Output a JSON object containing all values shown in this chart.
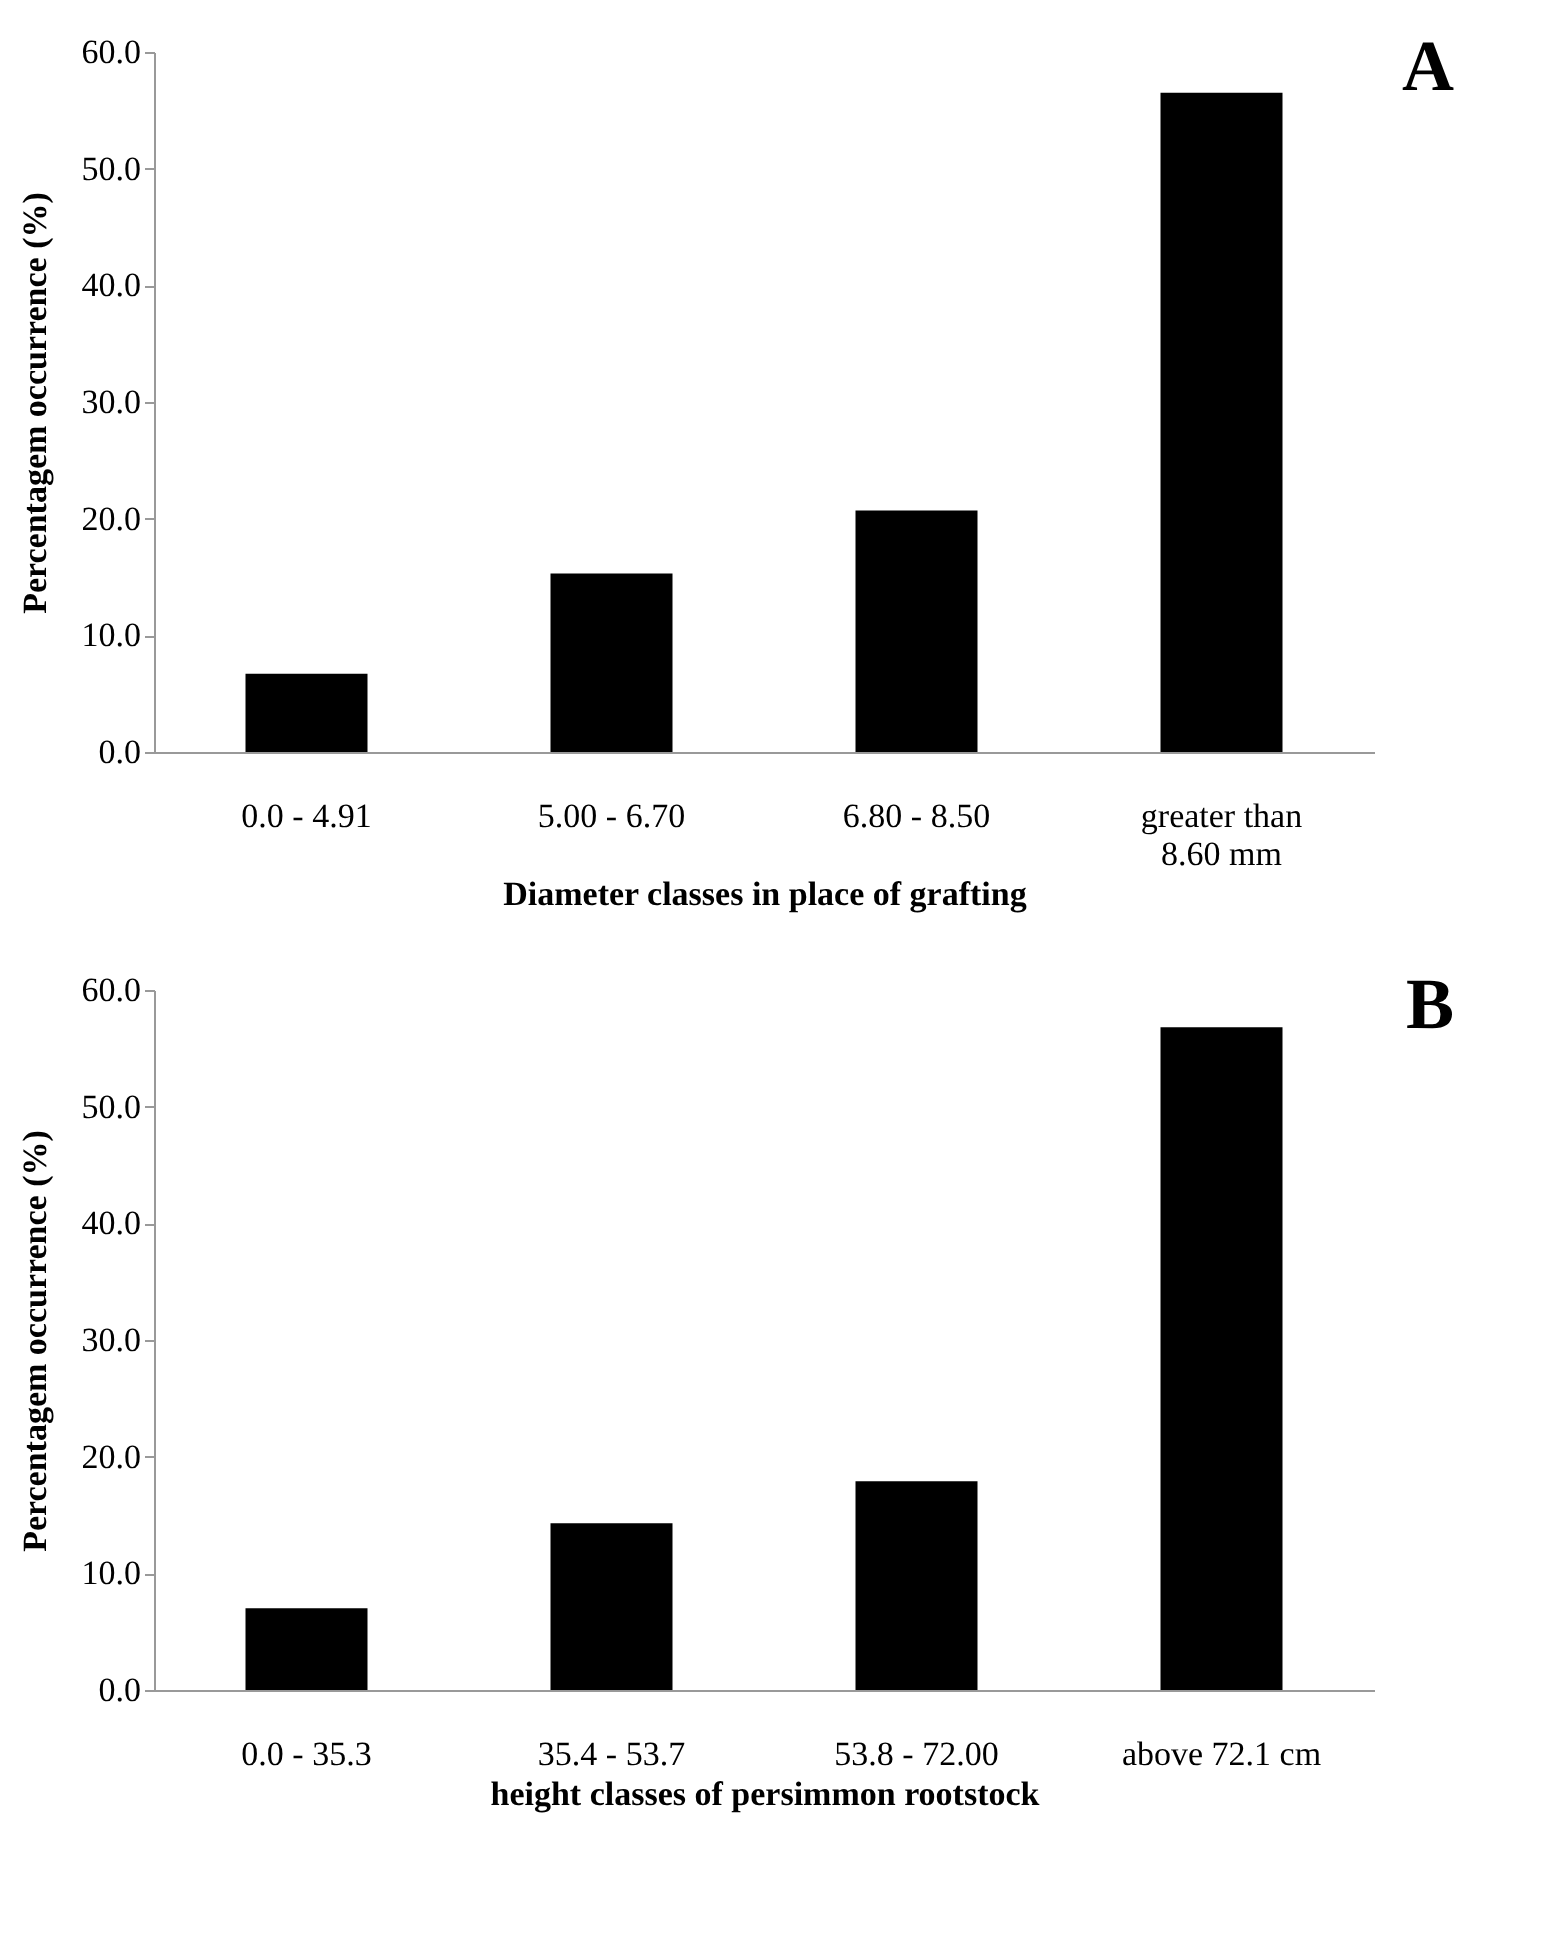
{
  "chart_data": [
    {
      "type": "bar",
      "title": "A",
      "categories": [
        "0.0 - 4.91",
        "5.00 - 6.70",
        "6.80 - 8.50",
        "greater than\n8.60 mm"
      ],
      "values": [
        6.7,
        15.3,
        20.7,
        56.5
      ],
      "color": "#000000",
      "xlabel": "Diameter classes in place of grafting",
      "ylabel": "Percentagem occurrence (%)",
      "ylim": [
        0,
        60
      ],
      "yticks": [
        {
          "value": 0,
          "label": "0.0"
        },
        {
          "value": 10,
          "label": "10.0"
        },
        {
          "value": 20,
          "label": "20.0"
        },
        {
          "value": 30,
          "label": "30.0"
        },
        {
          "value": 40,
          "label": "40.0"
        },
        {
          "value": 50,
          "label": "50.0"
        },
        {
          "value": 60,
          "label": "60.0"
        }
      ],
      "grid": false
    },
    {
      "type": "bar",
      "title": "B",
      "categories": [
        "0.0 - 35.3",
        "35.4 - 53.7",
        "53.8 - 72.00",
        "above 72.1 cm"
      ],
      "values": [
        7.0,
        14.3,
        17.9,
        56.8
      ],
      "color": "#000000",
      "xlabel": "height classes of persimmon rootstock",
      "ylabel": "Percentagem occurrence (%)",
      "ylim": [
        0,
        60
      ],
      "yticks": [
        {
          "value": 0,
          "label": "0.0"
        },
        {
          "value": 10,
          "label": "10.0"
        },
        {
          "value": 20,
          "label": "20.0"
        },
        {
          "value": 30,
          "label": "30.0"
        },
        {
          "value": 40,
          "label": "40.0"
        },
        {
          "value": 50,
          "label": "50.0"
        },
        {
          "value": 60,
          "label": "60.0"
        }
      ],
      "grid": false
    }
  ]
}
